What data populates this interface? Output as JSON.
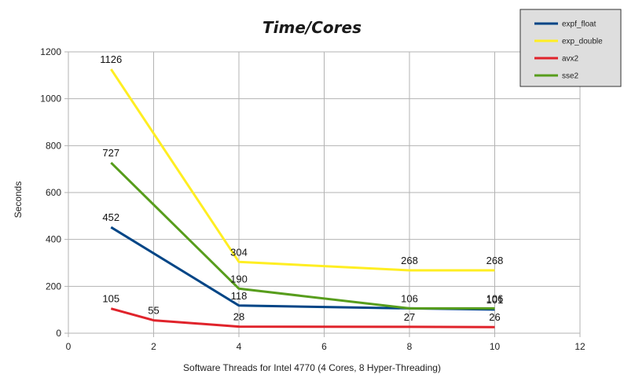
{
  "chart_data": {
    "type": "line",
    "title": "Time/Cores",
    "xlabel": "Software Threads for Intel 4770 (4 Cores, 8 Hyper-Threading)",
    "ylabel": "Seconds",
    "xlim": [
      0,
      12
    ],
    "ylim": [
      0,
      1200
    ],
    "x_ticks": [
      0,
      2,
      4,
      6,
      8,
      10,
      12
    ],
    "y_ticks": [
      0,
      200,
      400,
      600,
      800,
      1000,
      1200
    ],
    "grid": "vertical and horizontal",
    "legend_position": "top-right",
    "series": [
      {
        "name": "expf_float",
        "color": "#004586",
        "x": [
          1,
          4,
          8,
          10
        ],
        "values": [
          452,
          118,
          106,
          101
        ],
        "labels": [
          "452",
          "118",
          "106",
          "101"
        ]
      },
      {
        "name": "exp_double",
        "color": "#ffee22",
        "x": [
          1,
          4,
          8,
          10
        ],
        "values": [
          1126,
          304,
          268,
          268
        ],
        "labels": [
          "1126",
          "304",
          "268",
          "268"
        ]
      },
      {
        "name": "avx2",
        "color": "#e0232b",
        "x": [
          1,
          2,
          4,
          8,
          10
        ],
        "values": [
          105,
          55,
          28,
          27,
          26
        ],
        "labels": [
          "105",
          "55",
          "28",
          "27",
          "26"
        ]
      },
      {
        "name": "sse2",
        "color": "#579d1c",
        "x": [
          1,
          4,
          8,
          10
        ],
        "values": [
          727,
          190,
          106,
          106
        ],
        "labels": [
          "727",
          "190",
          "",
          "106"
        ]
      }
    ]
  }
}
